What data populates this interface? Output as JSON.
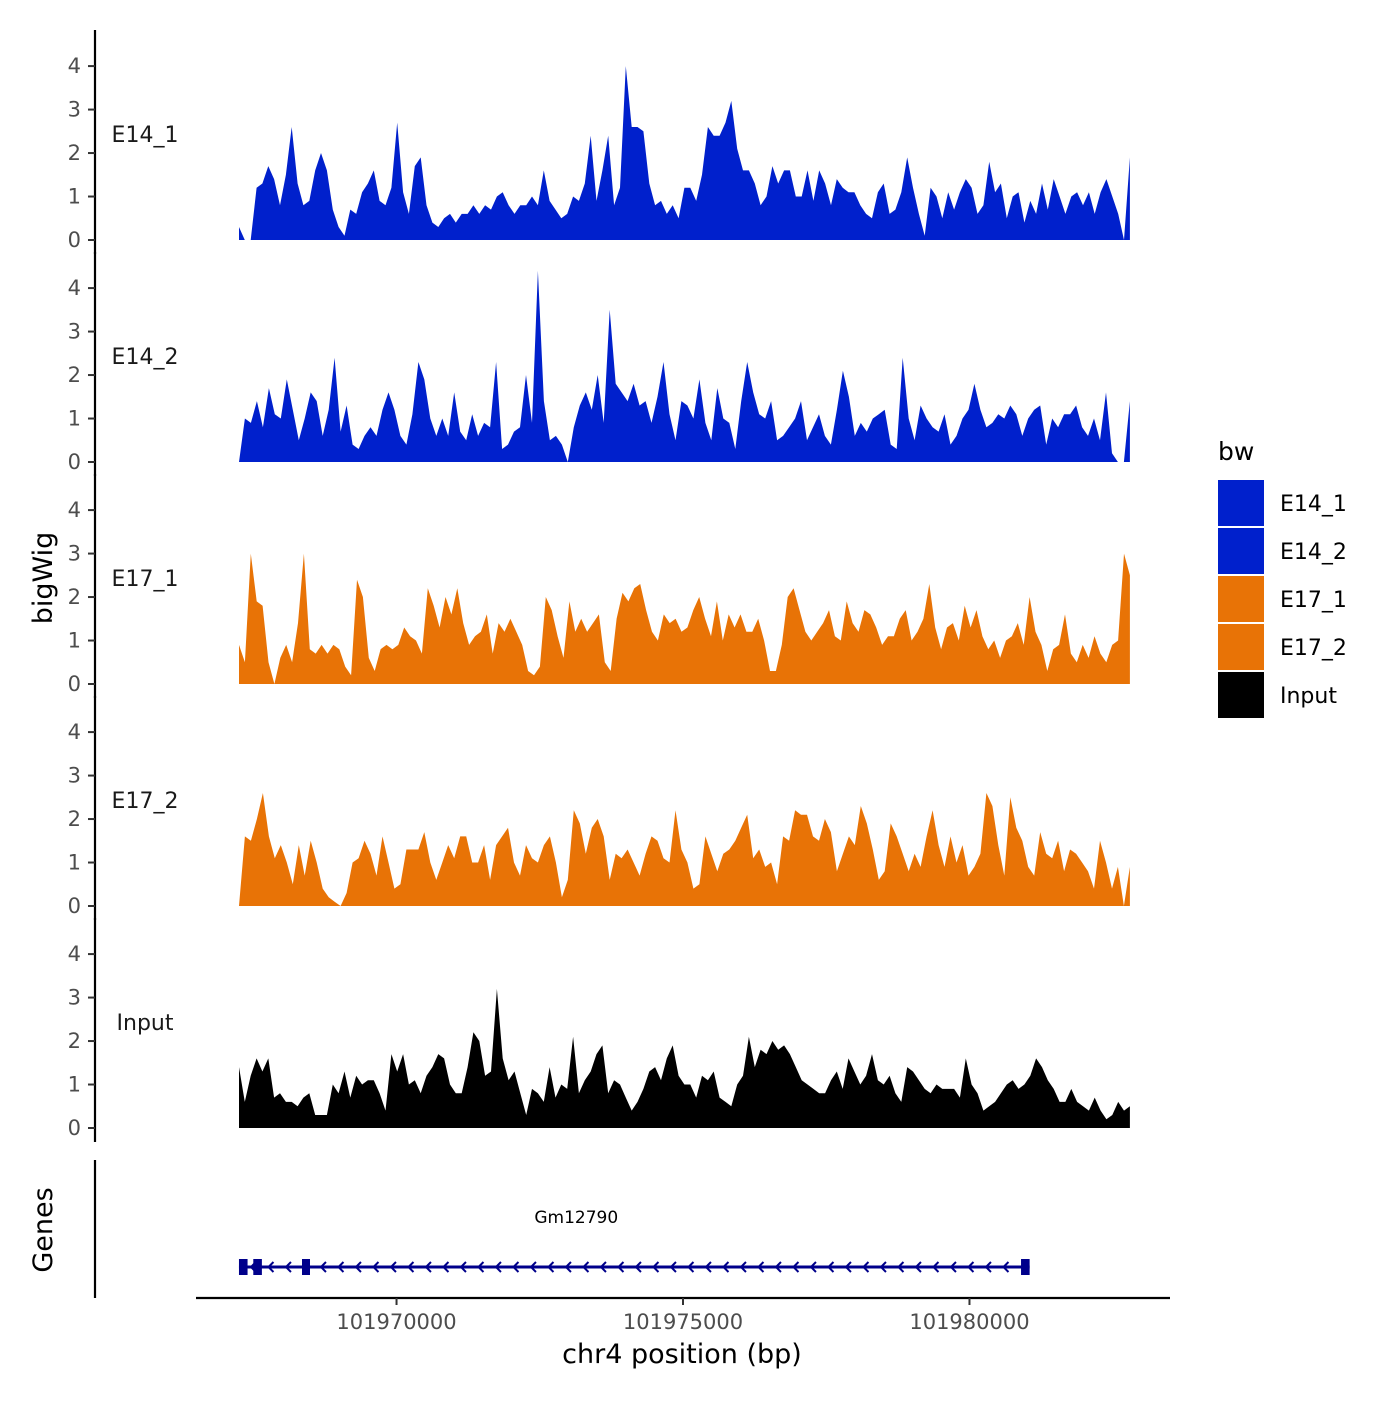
{
  "chart_data": {
    "type": "area",
    "y_axis_title": "bigWig",
    "genes_axis_title": "Genes",
    "x_axis_title": "chr4 position (bp)",
    "xlim": [
      101966500,
      101983500
    ],
    "x_ticks": [
      101970000,
      101975000,
      101980000
    ],
    "x_tick_labels": [
      "101970000",
      "101975000",
      "101980000"
    ],
    "ylim": [
      0,
      4.6
    ],
    "y_ticks": [
      0,
      1,
      2,
      3,
      4
    ],
    "y_tick_labels": [
      "0",
      "1",
      "2",
      "3",
      "4"
    ],
    "x_range_bp": [
      101967250,
      101982800
    ],
    "legend": {
      "title": "bw",
      "position": "right",
      "entries": [
        {
          "label": "E14_1",
          "color": "#0020CC"
        },
        {
          "label": "E14_2",
          "color": "#0020CC"
        },
        {
          "label": "E17_1",
          "color": "#E87306"
        },
        {
          "label": "E17_2",
          "color": "#E87306"
        },
        {
          "label": "Input",
          "color": "#000000"
        }
      ]
    },
    "series": [
      {
        "name": "E14_1",
        "color": "#0020CC",
        "values": [
          0.3,
          0.0,
          0.0,
          1.2,
          1.3,
          1.7,
          1.4,
          0.8,
          1.5,
          2.6,
          1.3,
          0.8,
          0.9,
          1.6,
          2.0,
          1.6,
          0.7,
          0.3,
          0.1,
          0.7,
          0.6,
          1.1,
          1.3,
          1.6,
          0.9,
          0.8,
          1.2,
          2.7,
          1.1,
          0.6,
          1.7,
          1.9,
          0.8,
          0.4,
          0.3,
          0.5,
          0.6,
          0.4,
          0.6,
          0.6,
          0.8,
          0.6,
          0.8,
          0.7,
          1.0,
          1.1,
          0.8,
          0.6,
          0.8,
          0.8,
          1.0,
          0.8,
          1.6,
          0.9,
          0.7,
          0.5,
          0.6,
          1.0,
          0.9,
          1.3,
          2.4,
          0.9,
          1.6,
          2.4,
          0.8,
          1.2,
          4.0,
          2.6,
          2.6,
          2.5,
          1.3,
          0.8,
          0.9,
          0.6,
          0.8,
          0.5,
          1.2,
          1.2,
          0.9,
          1.5,
          2.6,
          2.4,
          2.4,
          2.7,
          3.2,
          2.1,
          1.6,
          1.6,
          1.3,
          0.8,
          1.0,
          1.7,
          1.3,
          1.6,
          1.6,
          1.0,
          1.0,
          1.6,
          0.9,
          1.6,
          1.3,
          0.8,
          1.4,
          1.2,
          1.1,
          1.1,
          0.8,
          0.6,
          0.5,
          1.1,
          1.3,
          0.6,
          0.7,
          1.1,
          1.9,
          1.2,
          0.6,
          0.1,
          1.2,
          1.0,
          0.5,
          1.1,
          0.7,
          1.1,
          1.4,
          1.2,
          0.6,
          0.8,
          1.8,
          1.1,
          1.3,
          0.5,
          1.0,
          1.1,
          0.4,
          0.9,
          0.6,
          1.3,
          0.7,
          1.4,
          1.0,
          0.6,
          1.0,
          1.1,
          0.8,
          1.1,
          0.6,
          1.1,
          1.4,
          1.0,
          0.6,
          0.0,
          1.9
        ]
      },
      {
        "name": "E14_2",
        "color": "#0020CC",
        "values": [
          0.0,
          1.0,
          0.9,
          1.4,
          0.8,
          1.7,
          1.1,
          1.0,
          1.9,
          1.2,
          0.5,
          1.0,
          1.6,
          1.4,
          0.6,
          1.2,
          2.4,
          0.7,
          1.3,
          0.4,
          0.3,
          0.6,
          0.8,
          0.6,
          1.2,
          1.6,
          1.2,
          0.6,
          0.4,
          1.1,
          2.3,
          1.9,
          1.0,
          0.6,
          1.0,
          0.6,
          1.6,
          0.7,
          0.5,
          1.1,
          0.6,
          0.9,
          0.8,
          2.3,
          0.3,
          0.4,
          0.7,
          0.8,
          2.0,
          0.9,
          4.4,
          1.4,
          0.5,
          0.6,
          0.4,
          0.0,
          0.8,
          1.3,
          1.6,
          1.2,
          2.0,
          0.9,
          3.5,
          1.8,
          1.6,
          1.4,
          1.8,
          1.3,
          1.4,
          0.9,
          1.5,
          2.3,
          1.1,
          0.5,
          1.4,
          1.3,
          1.0,
          1.9,
          0.9,
          0.5,
          1.7,
          1.0,
          0.9,
          0.3,
          1.4,
          2.3,
          1.6,
          1.1,
          1.0,
          1.4,
          0.5,
          0.6,
          0.8,
          1.0,
          1.4,
          0.5,
          0.8,
          1.1,
          0.6,
          0.4,
          1.2,
          2.1,
          1.5,
          0.6,
          0.9,
          0.7,
          1.0,
          1.1,
          1.2,
          0.4,
          0.3,
          2.4,
          1.0,
          0.5,
          1.3,
          1.0,
          0.8,
          0.7,
          1.1,
          0.4,
          0.6,
          1.0,
          1.2,
          1.8,
          1.2,
          0.8,
          0.9,
          1.1,
          1.0,
          1.3,
          1.1,
          0.6,
          1.0,
          1.2,
          1.3,
          0.4,
          1.0,
          0.8,
          1.1,
          1.1,
          1.3,
          0.8,
          0.6,
          1.0,
          0.5,
          1.6,
          0.2,
          0.0,
          0.0,
          1.4
        ]
      },
      {
        "name": "E17_1",
        "color": "#E87306",
        "values": [
          0.9,
          0.5,
          3.0,
          1.9,
          1.8,
          0.5,
          0.0,
          0.6,
          0.9,
          0.5,
          1.4,
          3.0,
          0.8,
          0.7,
          0.9,
          0.7,
          0.9,
          0.8,
          0.4,
          0.2,
          2.4,
          2.0,
          0.6,
          0.3,
          0.8,
          0.9,
          0.8,
          0.9,
          1.3,
          1.1,
          1.0,
          0.7,
          2.2,
          1.8,
          1.3,
          2.0,
          1.6,
          2.2,
          1.4,
          0.9,
          1.1,
          1.2,
          1.6,
          0.7,
          1.4,
          1.2,
          1.5,
          1.2,
          0.9,
          0.3,
          0.2,
          0.4,
          2.0,
          1.7,
          1.1,
          0.6,
          1.9,
          1.2,
          1.5,
          1.2,
          1.4,
          1.6,
          0.5,
          0.3,
          1.5,
          2.1,
          1.9,
          2.2,
          2.3,
          1.7,
          1.2,
          1.0,
          1.6,
          1.4,
          1.5,
          1.2,
          1.3,
          1.7,
          2.0,
          1.5,
          1.1,
          1.9,
          1.0,
          1.6,
          1.3,
          1.6,
          1.2,
          1.2,
          1.5,
          1.0,
          0.3,
          0.3,
          0.9,
          2.0,
          2.2,
          1.7,
          1.2,
          1.0,
          1.2,
          1.4,
          1.7,
          1.1,
          1.0,
          1.9,
          1.4,
          1.2,
          1.7,
          1.6,
          1.3,
          0.9,
          1.1,
          1.1,
          1.5,
          1.7,
          1.0,
          1.2,
          1.5,
          2.3,
          1.3,
          0.8,
          1.3,
          1.4,
          1.0,
          1.8,
          1.3,
          1.7,
          1.1,
          0.8,
          1.0,
          0.6,
          1.0,
          1.1,
          1.4,
          0.9,
          2.0,
          1.2,
          0.9,
          0.3,
          0.8,
          0.9,
          1.6,
          0.7,
          0.5,
          0.9,
          0.6,
          1.1,
          0.7,
          0.5,
          0.9,
          1.0,
          3.0,
          2.5
        ]
      },
      {
        "name": "E17_2",
        "color": "#E87306",
        "values": [
          0.0,
          1.6,
          1.5,
          2.0,
          2.6,
          1.6,
          1.1,
          1.4,
          1.0,
          0.5,
          1.4,
          0.7,
          1.5,
          1.0,
          0.4,
          0.2,
          0.1,
          0.0,
          0.3,
          1.0,
          1.1,
          1.5,
          1.2,
          0.7,
          1.6,
          1.0,
          0.4,
          0.5,
          1.3,
          1.3,
          1.3,
          1.7,
          1.0,
          0.6,
          1.0,
          1.4,
          1.1,
          1.6,
          1.6,
          1.0,
          1.0,
          1.4,
          0.6,
          1.4,
          1.6,
          1.8,
          1.0,
          0.7,
          1.4,
          1.1,
          1.0,
          1.4,
          1.6,
          1.0,
          0.2,
          0.6,
          2.2,
          1.9,
          1.2,
          1.8,
          2.0,
          1.6,
          0.6,
          1.2,
          1.1,
          1.3,
          1.0,
          0.7,
          1.2,
          1.6,
          1.5,
          1.1,
          1.0,
          2.2,
          1.3,
          1.0,
          0.4,
          0.5,
          1.6,
          1.2,
          0.8,
          1.2,
          1.3,
          1.5,
          1.8,
          2.1,
          1.1,
          1.3,
          0.9,
          1.0,
          0.5,
          1.6,
          1.5,
          2.2,
          2.1,
          2.1,
          1.6,
          1.5,
          2.0,
          1.7,
          0.8,
          1.2,
          1.6,
          1.4,
          2.3,
          1.9,
          1.3,
          0.6,
          0.8,
          1.9,
          1.6,
          1.2,
          0.8,
          1.2,
          0.9,
          1.6,
          2.2,
          1.4,
          0.9,
          1.6,
          1.0,
          1.4,
          0.7,
          0.9,
          1.2,
          2.6,
          2.3,
          1.4,
          0.7,
          2.5,
          1.8,
          1.5,
          0.9,
          0.7,
          1.7,
          1.2,
          1.1,
          1.5,
          0.8,
          1.3,
          1.2,
          1.0,
          0.8,
          0.4,
          1.5,
          1.0,
          0.4,
          0.9,
          0.0,
          0.9
        ]
      },
      {
        "name": "Input",
        "color": "#000000",
        "values": [
          1.4,
          0.6,
          1.2,
          1.6,
          1.3,
          1.6,
          0.7,
          0.8,
          0.6,
          0.6,
          0.5,
          0.7,
          0.8,
          0.3,
          0.3,
          0.3,
          1.0,
          0.8,
          1.3,
          0.7,
          1.2,
          1.0,
          1.1,
          1.1,
          0.8,
          0.4,
          1.7,
          1.3,
          1.7,
          1.0,
          1.1,
          0.8,
          1.2,
          1.4,
          1.7,
          1.6,
          1.0,
          0.8,
          0.8,
          1.4,
          2.2,
          2.0,
          1.2,
          1.3,
          3.2,
          1.6,
          1.1,
          1.3,
          0.8,
          0.3,
          0.9,
          0.8,
          0.6,
          1.4,
          0.7,
          1.0,
          0.9,
          2.1,
          0.8,
          1.1,
          1.3,
          1.7,
          1.9,
          0.8,
          1.1,
          1.0,
          0.7,
          0.4,
          0.6,
          0.9,
          1.3,
          1.4,
          1.1,
          1.6,
          1.9,
          1.2,
          1.0,
          1.0,
          0.7,
          1.2,
          1.1,
          1.3,
          0.7,
          0.6,
          0.5,
          1.0,
          1.2,
          2.1,
          1.4,
          1.8,
          1.7,
          2.0,
          1.8,
          1.9,
          1.7,
          1.4,
          1.1,
          1.0,
          0.9,
          0.8,
          0.8,
          1.1,
          1.3,
          0.9,
          1.6,
          1.3,
          1.0,
          1.2,
          1.7,
          1.1,
          1.0,
          1.2,
          0.8,
          0.6,
          1.4,
          1.3,
          1.1,
          0.9,
          0.8,
          1.0,
          0.9,
          0.9,
          0.9,
          0.7,
          1.6,
          1.0,
          0.8,
          0.4,
          0.5,
          0.6,
          0.8,
          1.0,
          1.1,
          0.9,
          1.0,
          1.2,
          1.6,
          1.4,
          1.1,
          0.9,
          0.6,
          0.6,
          0.9,
          0.6,
          0.5,
          0.4,
          0.7,
          0.4,
          0.2,
          0.3,
          0.6,
          0.4,
          0.5
        ]
      }
    ],
    "gene": {
      "name": "Gm12790",
      "color": "#00008B",
      "strand": "-",
      "start": 101967250,
      "end": 101981050,
      "exons": [
        [
          101967250,
          101967400
        ],
        [
          101967500,
          101967650
        ],
        [
          101968350,
          101968480
        ],
        [
          101980900,
          101981050
        ]
      ]
    }
  }
}
